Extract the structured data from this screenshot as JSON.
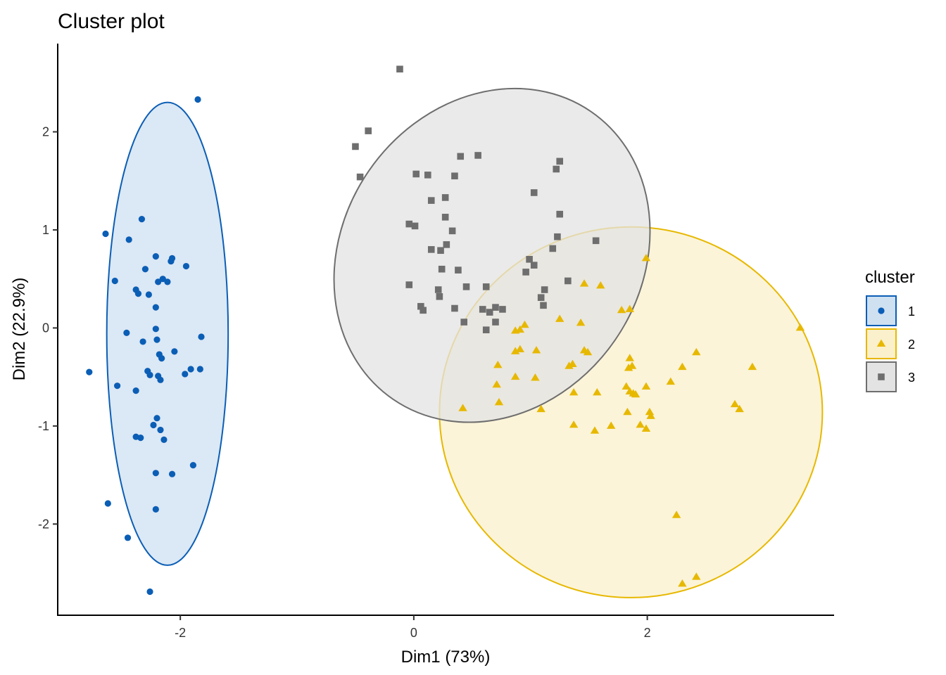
{
  "chart_data": {
    "type": "scatter",
    "title": "Cluster plot",
    "xlabel": "Dim1 (73%)",
    "ylabel": "Dim2 (22.9%)",
    "xlim": [
      -3.05,
      3.6
    ],
    "ylim": [
      -2.93,
      2.9
    ],
    "xticks": [
      -2,
      0,
      2
    ],
    "yticks": [
      -2,
      -1,
      0,
      1,
      2
    ],
    "grid": false,
    "legend": {
      "title": "cluster",
      "position": "right"
    },
    "series": [
      {
        "name": "1",
        "marker": "circle",
        "color": "#0B5EB5",
        "fill": "#CFE0F1",
        "ellipse": {
          "cx": -2.11,
          "cy": -0.06,
          "rx": 0.52,
          "ry": 2.36,
          "angle": 0
        },
        "points": [
          [
            -1.85,
            2.33
          ],
          [
            -2.33,
            1.11
          ],
          [
            -2.64,
            0.96
          ],
          [
            -2.44,
            0.9
          ],
          [
            -2.21,
            0.73
          ],
          [
            -2.07,
            0.71
          ],
          [
            -2.08,
            0.68
          ],
          [
            -1.95,
            0.63
          ],
          [
            -2.3,
            0.6
          ],
          [
            -2.15,
            0.5
          ],
          [
            -2.56,
            0.48
          ],
          [
            -2.11,
            0.47
          ],
          [
            -2.19,
            0.47
          ],
          [
            -2.38,
            0.39
          ],
          [
            -2.36,
            0.35
          ],
          [
            -2.27,
            0.34
          ],
          [
            -2.21,
            0.21
          ],
          [
            -2.21,
            -0.01
          ],
          [
            -2.46,
            -0.05
          ],
          [
            -2.2,
            -0.12
          ],
          [
            -2.32,
            -0.14
          ],
          [
            -1.82,
            -0.09
          ],
          [
            -2.05,
            -0.24
          ],
          [
            -2.18,
            -0.27
          ],
          [
            -2.16,
            -0.31
          ],
          [
            -1.91,
            -0.42
          ],
          [
            -1.83,
            -0.42
          ],
          [
            -1.96,
            -0.47
          ],
          [
            -2.28,
            -0.44
          ],
          [
            -2.26,
            -0.48
          ],
          [
            -2.19,
            -0.49
          ],
          [
            -2.17,
            -0.53
          ],
          [
            -2.78,
            -0.45
          ],
          [
            -2.54,
            -0.59
          ],
          [
            -2.38,
            -0.64
          ],
          [
            -2.2,
            -0.92
          ],
          [
            -2.23,
            -0.99
          ],
          [
            -2.17,
            -1.04
          ],
          [
            -2.38,
            -1.11
          ],
          [
            -2.34,
            -1.12
          ],
          [
            -2.14,
            -1.14
          ],
          [
            -1.89,
            -1.4
          ],
          [
            -2.21,
            -1.48
          ],
          [
            -2.07,
            -1.49
          ],
          [
            -2.62,
            -1.79
          ],
          [
            -2.21,
            -1.85
          ],
          [
            -2.45,
            -2.14
          ],
          [
            -2.26,
            -2.69
          ]
        ]
      },
      {
        "name": "2",
        "marker": "triangle",
        "color": "#E7B800",
        "fill": "#FAF0CC",
        "ellipse": {
          "cx": 1.86,
          "cy": -0.86,
          "rx": 1.64,
          "ry": 1.89,
          "angle": 0
        },
        "points": [
          [
            1.99,
            0.71
          ],
          [
            1.46,
            0.45
          ],
          [
            1.6,
            0.43
          ],
          [
            1.78,
            0.18
          ],
          [
            1.85,
            0.19
          ],
          [
            1.25,
            0.09
          ],
          [
            1.43,
            0.05
          ],
          [
            0.95,
            0.03
          ],
          [
            0.91,
            -0.02
          ],
          [
            0.87,
            -0.03
          ],
          [
            3.31,
            0.0
          ],
          [
            0.91,
            -0.22
          ],
          [
            1.05,
            -0.23
          ],
          [
            0.87,
            -0.24
          ],
          [
            1.46,
            -0.23
          ],
          [
            1.49,
            -0.25
          ],
          [
            2.42,
            -0.25
          ],
          [
            1.85,
            -0.31
          ],
          [
            1.36,
            -0.37
          ],
          [
            1.33,
            -0.39
          ],
          [
            0.72,
            -0.38
          ],
          [
            1.87,
            -0.39
          ],
          [
            1.84,
            -0.41
          ],
          [
            2.3,
            -0.4
          ],
          [
            2.9,
            -0.4
          ],
          [
            0.87,
            -0.5
          ],
          [
            1.04,
            -0.51
          ],
          [
            2.2,
            -0.55
          ],
          [
            0.71,
            -0.58
          ],
          [
            1.99,
            -0.6
          ],
          [
            1.82,
            -0.6
          ],
          [
            1.37,
            -0.66
          ],
          [
            1.57,
            -0.66
          ],
          [
            1.85,
            -0.65
          ],
          [
            1.88,
            -0.67
          ],
          [
            1.9,
            -0.68
          ],
          [
            2.75,
            -0.78
          ],
          [
            0.73,
            -0.76
          ],
          [
            0.42,
            -0.82
          ],
          [
            1.09,
            -0.83
          ],
          [
            2.79,
            -0.83
          ],
          [
            1.83,
            -0.86
          ],
          [
            2.02,
            -0.86
          ],
          [
            2.03,
            -0.9
          ],
          [
            1.37,
            -0.99
          ],
          [
            1.69,
            -1.0
          ],
          [
            1.94,
            -0.99
          ],
          [
            1.99,
            -1.03
          ],
          [
            1.55,
            -1.05
          ],
          [
            2.25,
            -1.91
          ],
          [
            2.3,
            -2.61
          ],
          [
            2.42,
            -2.54
          ]
        ]
      },
      {
        "name": "3",
        "marker": "square",
        "color": "#6E6E6E",
        "fill": "#E3E3E3",
        "ellipse": {
          "cx": 0.67,
          "cy": 0.74,
          "rx": 1.28,
          "ry": 1.78,
          "angle": 34.5
        },
        "points": [
          [
            -0.12,
            2.64
          ],
          [
            -0.39,
            2.01
          ],
          [
            -0.5,
            1.85
          ],
          [
            -0.46,
            1.54
          ],
          [
            0.4,
            1.75
          ],
          [
            0.55,
            1.76
          ],
          [
            1.25,
            1.7
          ],
          [
            1.22,
            1.62
          ],
          [
            0.02,
            1.57
          ],
          [
            0.12,
            1.56
          ],
          [
            0.35,
            1.55
          ],
          [
            1.03,
            1.38
          ],
          [
            0.27,
            1.33
          ],
          [
            0.15,
            1.3
          ],
          [
            1.25,
            1.16
          ],
          [
            0.27,
            1.13
          ],
          [
            -0.04,
            1.06
          ],
          [
            0.01,
            1.04
          ],
          [
            0.33,
            0.99
          ],
          [
            1.23,
            0.93
          ],
          [
            1.56,
            0.89
          ],
          [
            0.28,
            0.85
          ],
          [
            0.15,
            0.8
          ],
          [
            0.23,
            0.79
          ],
          [
            1.19,
            0.81
          ],
          [
            0.99,
            0.7
          ],
          [
            0.38,
            0.59
          ],
          [
            1.03,
            0.64
          ],
          [
            0.24,
            0.6
          ],
          [
            0.96,
            0.57
          ],
          [
            1.32,
            0.48
          ],
          [
            -0.04,
            0.44
          ],
          [
            0.45,
            0.42
          ],
          [
            0.62,
            0.42
          ],
          [
            0.21,
            0.39
          ],
          [
            1.12,
            0.39
          ],
          [
            0.22,
            0.32
          ],
          [
            1.09,
            0.31
          ],
          [
            0.06,
            0.22
          ],
          [
            0.08,
            0.18
          ],
          [
            0.35,
            0.2
          ],
          [
            0.59,
            0.19
          ],
          [
            0.7,
            0.21
          ],
          [
            0.65,
            0.16
          ],
          [
            0.76,
            0.19
          ],
          [
            1.11,
            0.23
          ],
          [
            0.43,
            0.06
          ],
          [
            0.7,
            0.06
          ],
          [
            0.62,
            -0.02
          ]
        ]
      }
    ]
  }
}
